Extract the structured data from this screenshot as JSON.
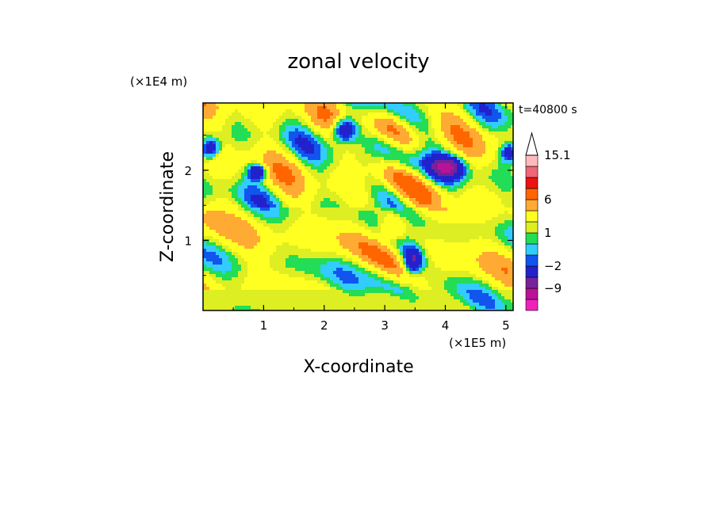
{
  "chart_data": {
    "type": "heatmap",
    "title": "zonal velocity",
    "xlabel": "X-coordinate",
    "ylabel": "Z-coordinate",
    "x_unit": "(×1E5 m)",
    "y_unit": "(×1E4 m)",
    "time_label": "t=40800 s",
    "xlim": [
      0,
      5.12
    ],
    "ylim": [
      0,
      2.96
    ],
    "x_ticks": [
      1,
      2,
      3,
      4,
      5
    ],
    "y_ticks": [
      1,
      2
    ],
    "colorbar": {
      "levels": [
        -15.1,
        -12,
        -9,
        -6,
        -2,
        -1,
        0,
        1,
        2,
        4,
        6,
        9,
        12,
        15.1
      ],
      "labels": [
        {
          "text": "15.1",
          "value": 15.1
        },
        {
          "text": "6",
          "value": 6
        },
        {
          "text": "1",
          "value": 1
        },
        {
          "text": "−2",
          "value": -2
        },
        {
          "text": "−9",
          "value": -9
        }
      ],
      "colors": [
        "#ee22bb",
        "#bb1199",
        "#772299",
        "#2222cc",
        "#1155ee",
        "#33ccff",
        "#22dd55",
        "#ddee22",
        "#ffff22",
        "#ffaa33",
        "#ff6600",
        "#ee1111",
        "#ee6677",
        "#ffbbbb"
      ],
      "extend_max": true
    }
  }
}
